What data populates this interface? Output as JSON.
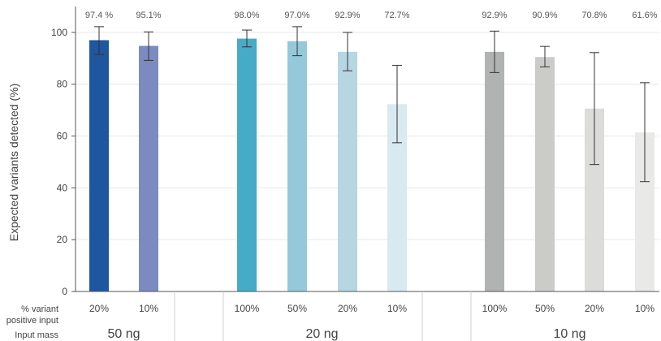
{
  "chart_data": {
    "type": "bar",
    "ylabel": "Expected variants detected (%)",
    "ylim": [
      0,
      110
    ],
    "yticks": [
      0,
      20,
      40,
      60,
      80,
      100
    ],
    "grid": "horizontal",
    "row_labels": {
      "percent": "% variant\npositive input",
      "mass": "Input mass"
    },
    "groups": [
      {
        "input_mass": "50 ng",
        "bars": [
          {
            "category": "20%",
            "value": 97.0,
            "label": "97.4 %",
            "err_low": 91.5,
            "err_high": 102.2,
            "color": "#1f56a0"
          },
          {
            "category": "10%",
            "value": 94.8,
            "label": "95.1%",
            "err_low": 89.2,
            "err_high": 100.2,
            "color": "#7b8bc0"
          }
        ]
      },
      {
        "input_mass": "20 ng",
        "bars": [
          {
            "category": "100%",
            "value": 97.6,
            "label": "98.0%",
            "err_low": 94.4,
            "err_high": 100.9,
            "color": "#45abc6"
          },
          {
            "category": "50%",
            "value": 96.6,
            "label": "97.0%",
            "err_low": 91.0,
            "err_high": 102.2,
            "color": "#94c8da"
          },
          {
            "category": "20%",
            "value": 92.5,
            "label": "92.9%",
            "err_low": 85.2,
            "err_high": 100.0,
            "color": "#b6d6e2"
          },
          {
            "category": "10%",
            "value": 72.3,
            "label": "72.7%",
            "err_low": 57.4,
            "err_high": 87.3,
            "color": "#d9e9f1"
          }
        ]
      },
      {
        "input_mass": "10 ng",
        "bars": [
          {
            "category": "100%",
            "value": 92.5,
            "label": "92.9%",
            "err_low": 84.5,
            "err_high": 100.5,
            "color": "#b1b2b2"
          },
          {
            "category": "50%",
            "value": 90.5,
            "label": "90.9%",
            "err_low": 86.7,
            "err_high": 94.6,
            "color": "#cbcbca"
          },
          {
            "category": "20%",
            "value": 70.6,
            "label": "70.8%",
            "err_low": 49.0,
            "err_high": 92.2,
            "color": "#dcdcdb"
          },
          {
            "category": "10%",
            "value": 61.4,
            "label": "61.6%",
            "err_low": 42.4,
            "err_high": 80.6,
            "color": "#e9e9e8"
          }
        ]
      }
    ]
  }
}
